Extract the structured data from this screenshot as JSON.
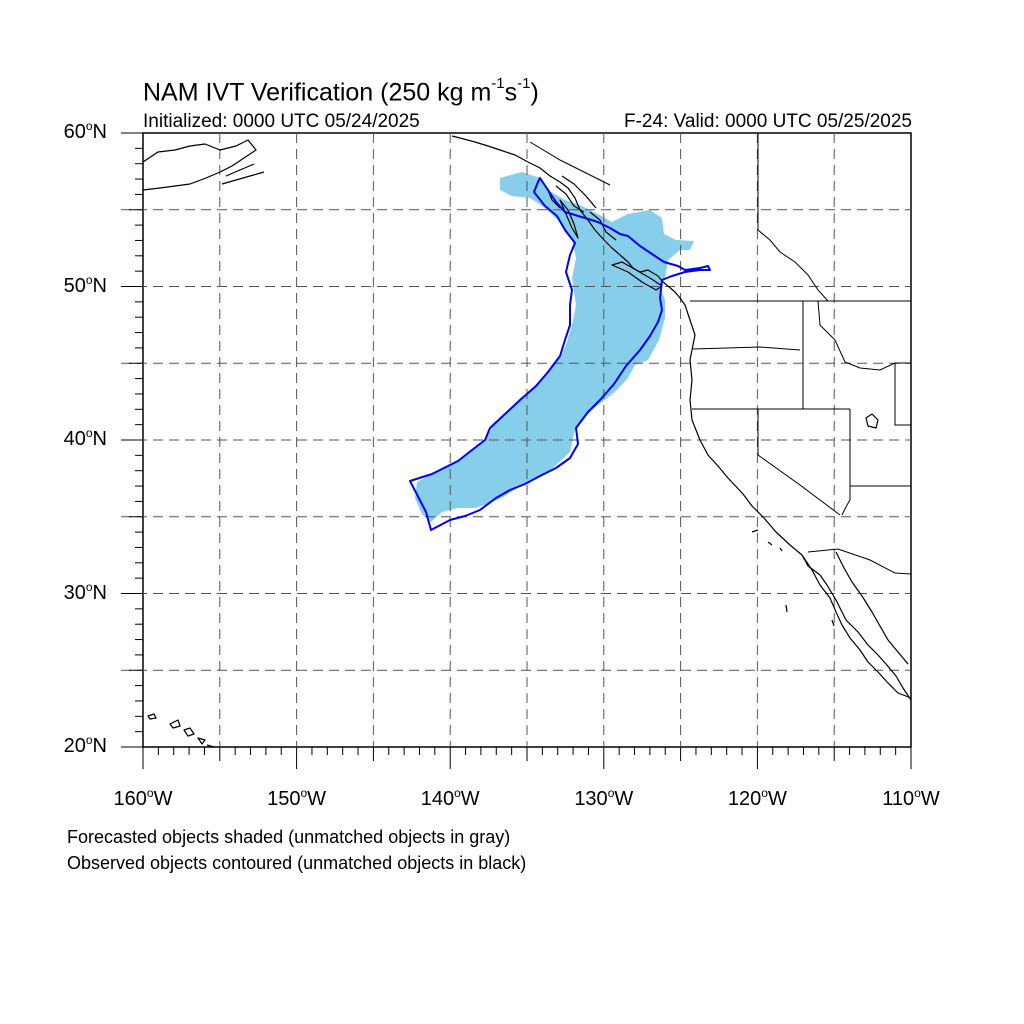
{
  "title": {
    "main": "NAM IVT Verification (250 kg m",
    "exp1": "-1",
    "mid": "s",
    "exp2": "-1",
    "end": ")"
  },
  "initialized": "Initialized: 0000 UTC 05/24/2025",
  "valid": "F-24: Valid: 0000 UTC 05/25/2025",
  "legend": {
    "forecast_note": "Forecasted objects shaded (unmatched objects in gray)",
    "observed_note": "Observed objects contoured (unmatched objects in black)"
  },
  "map": {
    "lon_range": [
      -160,
      -110
    ],
    "lat_range": [
      20,
      60
    ],
    "lat_labels": [
      {
        "value": 60,
        "num": "60",
        "hem": "N"
      },
      {
        "value": 50,
        "num": "50",
        "hem": "N"
      },
      {
        "value": 40,
        "num": "40",
        "hem": "N"
      },
      {
        "value": 30,
        "num": "30",
        "hem": "N"
      },
      {
        "value": 20,
        "num": "20",
        "hem": "N"
      }
    ],
    "lon_labels": [
      {
        "value": -160,
        "num": "160",
        "hem": "W"
      },
      {
        "value": -150,
        "num": "150",
        "hem": "W"
      },
      {
        "value": -140,
        "num": "140",
        "hem": "W"
      },
      {
        "value": -130,
        "num": "130",
        "hem": "W"
      },
      {
        "value": -120,
        "num": "120",
        "hem": "W"
      },
      {
        "value": -110,
        "num": "110",
        "hem": "W"
      }
    ],
    "grid_interval_deg": 5,
    "forecast_fill_color": "#87CEEB",
    "observed_contour_color": "#0000FF",
    "coastline_color": "#000000"
  }
}
